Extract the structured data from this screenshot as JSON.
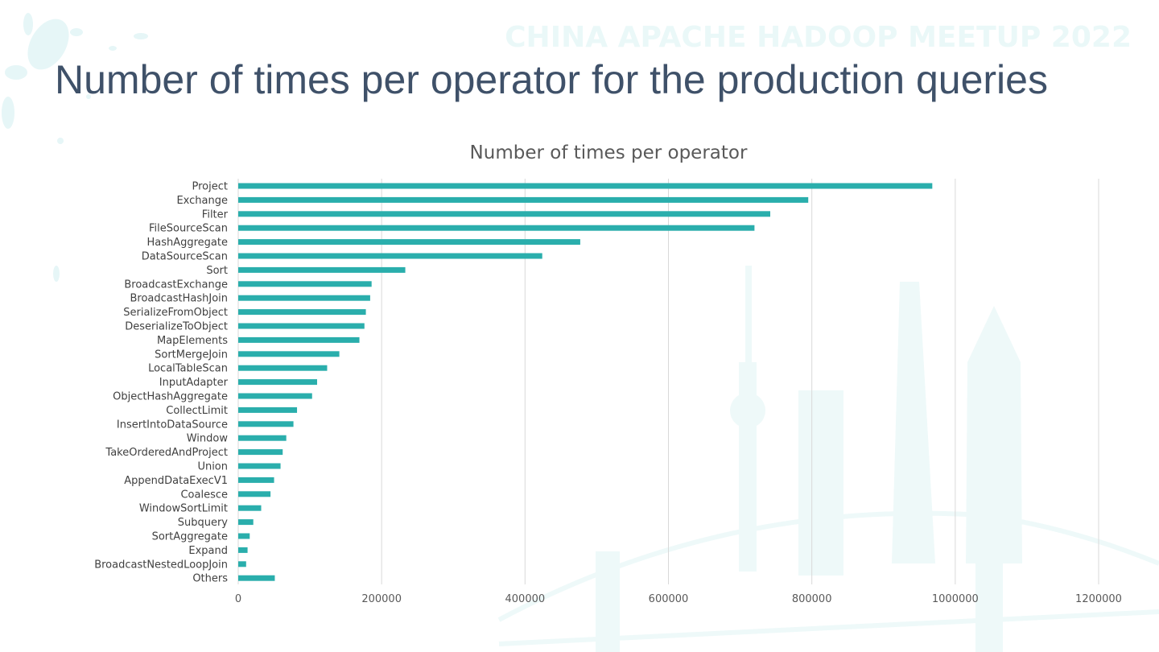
{
  "slide": {
    "title": "Number of times per operator for the production queries",
    "watermark": "CHINA APACHE HADOOP MEETUP 2022"
  },
  "colors": {
    "bar": "#2aaeac",
    "title": "#3f5169",
    "grid": "#d9d9d9",
    "watermark": "#eaf8f8"
  },
  "chart_data": {
    "type": "bar",
    "orientation": "horizontal",
    "title": "Number of times per operator",
    "xlabel": "",
    "ylabel": "",
    "grid": true,
    "legend": "none",
    "xlim": [
      0,
      1200000
    ],
    "xticks": [
      "0",
      "200000",
      "400000",
      "600000",
      "800000",
      "1000000",
      "1200000"
    ],
    "categories": [
      "Project",
      "Exchange",
      "Filter",
      "FileSourceScan",
      "HashAggregate",
      "DataSourceScan",
      "Sort",
      "BroadcastExchange",
      "BroadcastHashJoin",
      "SerializeFromObject",
      "DeserializeToObject",
      "MapElements",
      "SortMergeJoin",
      "LocalTableScan",
      "InputAdapter",
      "ObjectHashAggregate",
      "CollectLimit",
      "InsertIntoDataSource",
      "Window",
      "TakeOrderedAndProject",
      "Union",
      "AppendDataExecV1",
      "Coalesce",
      "WindowSortLimit",
      "Subquery",
      "SortAggregate",
      "Expand",
      "BroadcastNestedLoopJoin",
      "Others"
    ],
    "values": [
      968000,
      795000,
      742000,
      720000,
      477000,
      424000,
      233000,
      186000,
      184000,
      178000,
      176000,
      169000,
      141000,
      124000,
      110000,
      103000,
      82000,
      77000,
      67000,
      62000,
      59000,
      50000,
      45000,
      32000,
      21000,
      16000,
      13000,
      11000,
      51000
    ]
  }
}
